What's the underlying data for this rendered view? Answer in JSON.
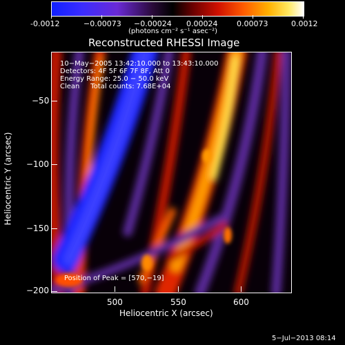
{
  "colorbar": {
    "ticks": [
      "-0.0012",
      "−0.00073",
      "−0.00024",
      "0.00024",
      "0.00073",
      "0.0012"
    ],
    "units": "(photons cm⁻² s⁻¹ asec⁻²)",
    "colors": [
      "#1020ff",
      "#4030ff",
      "#6030d0",
      "#000000",
      "#8a0000",
      "#ff2a00",
      "#ff8c00",
      "#ffd000",
      "#ffffff"
    ]
  },
  "title": "Reconstructed RHESSI Image",
  "annotations": {
    "line1": "10−May−2005 13:42:10.000 to 13:43:10.000",
    "line2": "Detectors: 4F 5F 6F 7F 8F, Att 0",
    "line3": "Energy Range: 25.0 − 50.0 keV",
    "line4": "Clean     Total counts: 7.68E+04",
    "peak": "Position of Peak = [570,−19]"
  },
  "axes": {
    "xlabel": "Heliocentric X (arcsec)",
    "ylabel": "Heliocentric Y (arcsec)",
    "xticks": [
      "500",
      "550",
      "600"
    ],
    "yticks": [
      "−50",
      "−100",
      "−150",
      "−200"
    ],
    "xrange": [
      452,
      640
    ],
    "yrange": [
      -202,
      -17
    ]
  },
  "timestamp": "5−Jul−2013 08:14"
}
